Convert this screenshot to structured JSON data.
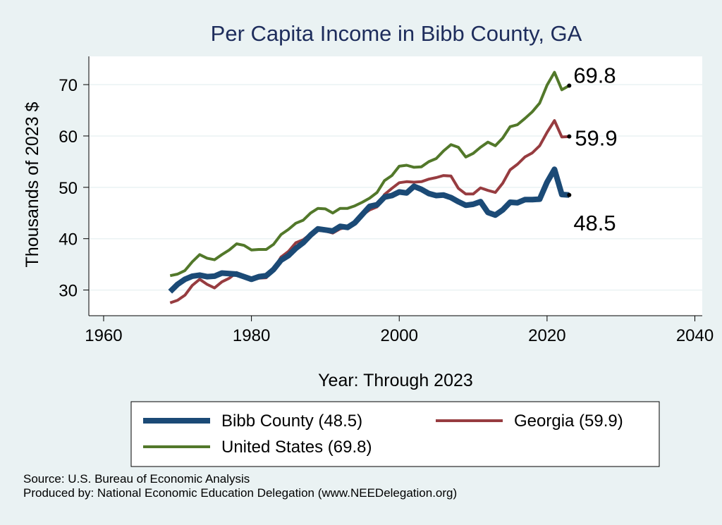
{
  "chart_data": {
    "type": "line",
    "title": "Per Capita Income in Bibb County, GA",
    "xlabel": "Year: Through 2023",
    "ylabel": "Thousands of 2023 $",
    "xlim": [
      1958,
      2041
    ],
    "ylim": [
      25,
      75.5
    ],
    "xticks": [
      1960,
      1980,
      2000,
      2020,
      2040
    ],
    "yticks": [
      30,
      40,
      50,
      60,
      70
    ],
    "x": [
      1969,
      1970,
      1971,
      1972,
      1973,
      1974,
      1975,
      1976,
      1977,
      1978,
      1979,
      1980,
      1981,
      1982,
      1983,
      1984,
      1985,
      1986,
      1987,
      1988,
      1989,
      1990,
      1991,
      1992,
      1993,
      1994,
      1995,
      1996,
      1997,
      1998,
      1999,
      2000,
      2001,
      2002,
      2003,
      2004,
      2005,
      2006,
      2007,
      2008,
      2009,
      2010,
      2011,
      2012,
      2013,
      2014,
      2015,
      2016,
      2017,
      2018,
      2019,
      2020,
      2021,
      2022,
      2023
    ],
    "series": [
      {
        "name": "United States",
        "legend": "United States (69.8)",
        "end_label": "69.8",
        "color": "#52782a",
        "width": 4,
        "values": [
          32.8,
          33.1,
          33.8,
          35.5,
          36.9,
          36.2,
          35.9,
          36.9,
          37.8,
          39.0,
          38.7,
          37.8,
          37.9,
          37.9,
          38.9,
          40.8,
          41.8,
          43.0,
          43.6,
          45.0,
          45.9,
          45.8,
          45.0,
          45.9,
          45.9,
          46.4,
          47.1,
          47.9,
          49.0,
          51.3,
          52.3,
          54.1,
          54.3,
          53.9,
          54.0,
          55.0,
          55.6,
          57.1,
          58.3,
          57.8,
          55.9,
          56.6,
          57.8,
          58.8,
          58.1,
          59.6,
          61.8,
          62.2,
          63.4,
          64.7,
          66.4,
          69.9,
          72.4,
          69.0,
          69.8
        ]
      },
      {
        "name": "Georgia",
        "legend": "Georgia (59.9)",
        "end_label": "59.9",
        "color": "#973c40",
        "width": 4,
        "values": [
          27.5,
          28.0,
          29.0,
          30.9,
          32.1,
          31.1,
          30.4,
          31.6,
          32.3,
          33.4,
          32.7,
          31.9,
          32.3,
          32.4,
          34.0,
          36.4,
          37.5,
          39.2,
          39.8,
          40.9,
          41.6,
          41.5,
          41.1,
          41.9,
          42.3,
          43.4,
          44.6,
          45.6,
          46.2,
          48.6,
          49.8,
          50.9,
          51.1,
          51.0,
          51.1,
          51.6,
          51.9,
          52.3,
          52.2,
          49.8,
          48.7,
          48.7,
          49.9,
          49.4,
          49.0,
          50.8,
          53.4,
          54.5,
          55.9,
          56.7,
          58.1,
          60.7,
          63.0,
          59.8,
          59.9
        ]
      },
      {
        "name": "Bibb County",
        "legend": "Bibb County (48.5)",
        "end_label": "48.5",
        "color": "#1b4a76",
        "width": 8,
        "values": [
          29.7,
          31.1,
          32.1,
          32.7,
          32.9,
          32.6,
          32.7,
          33.3,
          33.2,
          33.1,
          32.6,
          32.1,
          32.6,
          32.8,
          34.0,
          35.8,
          36.7,
          38.1,
          39.2,
          40.7,
          41.9,
          41.7,
          41.5,
          42.4,
          42.2,
          43.1,
          44.7,
          46.3,
          46.6,
          48.1,
          48.4,
          49.1,
          48.9,
          50.2,
          49.6,
          48.8,
          48.4,
          48.5,
          48.0,
          47.2,
          46.5,
          46.7,
          47.2,
          45.1,
          44.6,
          45.6,
          47.1,
          47.0,
          47.6,
          47.6,
          47.7,
          51.0,
          53.5,
          48.6,
          48.5
        ]
      }
    ],
    "legend_position": "bottom"
  },
  "footer": {
    "source": "Source: U.S. Bureau of Economic Analysis",
    "produced_by": "Produced by: National Economic Education Delegation (www.NEEDelegation.org)"
  },
  "colors": {
    "background": "#eaf2f3",
    "plot_background": "#ffffff",
    "title": "#1e2d5c",
    "grid": "#eaf2f3"
  }
}
